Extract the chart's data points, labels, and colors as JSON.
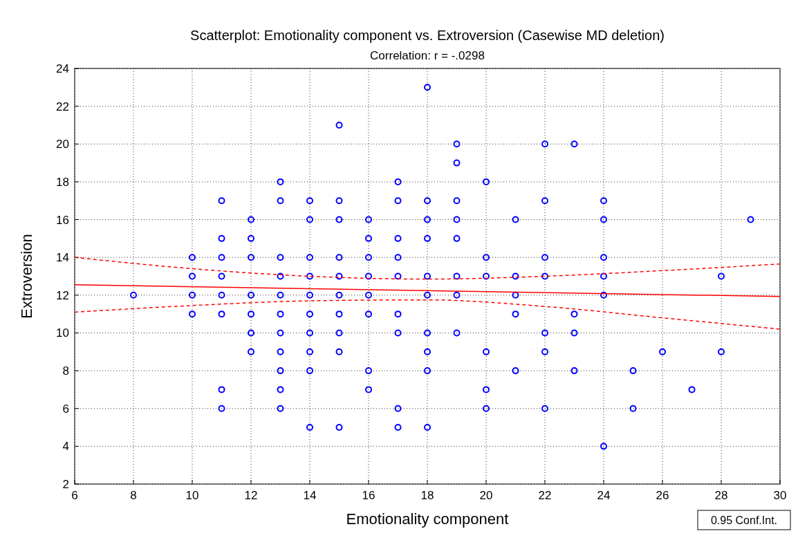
{
  "chart_data": {
    "type": "scatter",
    "title": "Scatterplot: Emotionality component vs. Extroversion (Casewise MD deletion)",
    "subtitle": "Correlation: r = -.0298",
    "xlabel": "Emotionality component",
    "ylabel": "Extroversion",
    "xlim": [
      6,
      30
    ],
    "ylim": [
      2,
      24
    ],
    "xticks": [
      6,
      8,
      10,
      12,
      14,
      16,
      18,
      20,
      22,
      24,
      26,
      28,
      30
    ],
    "yticks": [
      2,
      4,
      6,
      8,
      10,
      12,
      14,
      16,
      18,
      20,
      22,
      24
    ],
    "grid": true,
    "annotations": [
      "0.95 Conf.Int."
    ],
    "series": [
      {
        "color": "#0000ff",
        "marker": "circle",
        "x": [
          8,
          10,
          10,
          10,
          10,
          11,
          11,
          11,
          11,
          11,
          11,
          11,
          11,
          12,
          12,
          12,
          12,
          12,
          12,
          12,
          13,
          13,
          13,
          13,
          13,
          13,
          13,
          13,
          13,
          13,
          13,
          14,
          14,
          14,
          14,
          14,
          14,
          14,
          14,
          14,
          14,
          15,
          15,
          15,
          15,
          15,
          15,
          15,
          15,
          15,
          15,
          16,
          16,
          16,
          16,
          16,
          16,
          16,
          16,
          17,
          17,
          17,
          17,
          17,
          17,
          17,
          17,
          17,
          18,
          18,
          18,
          18,
          18,
          18,
          18,
          18,
          18,
          18,
          19,
          19,
          19,
          19,
          19,
          19,
          19,
          19,
          20,
          20,
          20,
          20,
          20,
          20,
          21,
          21,
          21,
          21,
          21,
          22,
          22,
          22,
          22,
          22,
          22,
          22,
          23,
          23,
          23,
          23,
          24,
          24,
          24,
          24,
          24,
          24,
          25,
          25,
          26,
          27,
          28,
          28,
          29
        ],
        "values": [
          12,
          14,
          13,
          12,
          11,
          17,
          15,
          14,
          13,
          12,
          11,
          7,
          6,
          16,
          15,
          14,
          12,
          11,
          10,
          9,
          18,
          17,
          14,
          13,
          12,
          11,
          10,
          9,
          8,
          7,
          6,
          17,
          16,
          14,
          13,
          12,
          11,
          10,
          9,
          8,
          5,
          21,
          17,
          16,
          14,
          13,
          12,
          11,
          10,
          9,
          5,
          16,
          15,
          14,
          13,
          12,
          11,
          8,
          7,
          18,
          17,
          15,
          14,
          13,
          11,
          10,
          6,
          5,
          23,
          17,
          16,
          15,
          13,
          12,
          10,
          9,
          8,
          5,
          20,
          19,
          17,
          16,
          15,
          13,
          12,
          10,
          18,
          14,
          13,
          9,
          7,
          6,
          16,
          13,
          12,
          11,
          8,
          20,
          17,
          14,
          13,
          10,
          9,
          6,
          20,
          11,
          10,
          8,
          17,
          16,
          14,
          13,
          12,
          4,
          8,
          6,
          9,
          7,
          13,
          9,
          16
        ]
      },
      {
        "type": "line",
        "color": "#ff0000",
        "line_style": "solid",
        "x": [
          6,
          30
        ],
        "values": [
          12.55,
          11.93
        ]
      },
      {
        "type": "line",
        "color": "#ff0000",
        "line_style": "dashed",
        "x": [
          6,
          10,
          14,
          18,
          22,
          26,
          30
        ],
        "values": [
          14.0,
          13.4,
          13.0,
          12.85,
          13.0,
          13.3,
          13.65
        ]
      },
      {
        "type": "line",
        "color": "#ff0000",
        "line_style": "dashed",
        "x": [
          6,
          10,
          14,
          18,
          22,
          26,
          30
        ],
        "values": [
          11.1,
          11.45,
          11.7,
          11.75,
          11.4,
          10.8,
          10.2
        ]
      }
    ]
  }
}
